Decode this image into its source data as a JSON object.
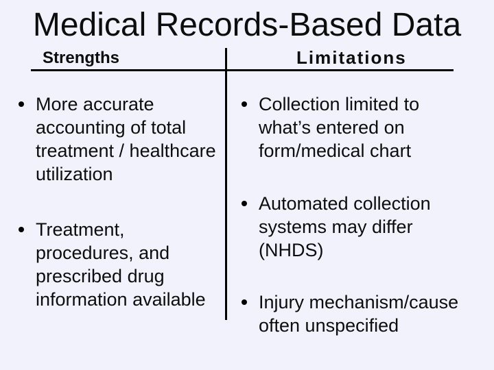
{
  "slide": {
    "title": "Medical Records-Based Data",
    "colors": {
      "background": "#f1f2fb",
      "text": "#0d0d0d",
      "rule": "#000000"
    },
    "columns": [
      {
        "header": "Strengths",
        "bullets": [
          {
            "lines": [
              "More accurate",
              "accounting of total",
              "treatment / healthcare",
              "utilization"
            ]
          },
          {
            "lines": [
              "Treatment,",
              "procedures, and",
              "prescribed drug",
              "information available"
            ]
          }
        ]
      },
      {
        "header": "Limitations",
        "bullets": [
          {
            "lines": [
              "Collection limited to",
              "what’s entered on",
              "form/medical chart"
            ]
          },
          {
            "lines": [
              "Automated collection",
              "systems may differ",
              "(NHDS)"
            ]
          },
          {
            "lines": [
              "Injury mechanism/cause",
              "often unspecified"
            ]
          }
        ]
      }
    ]
  }
}
